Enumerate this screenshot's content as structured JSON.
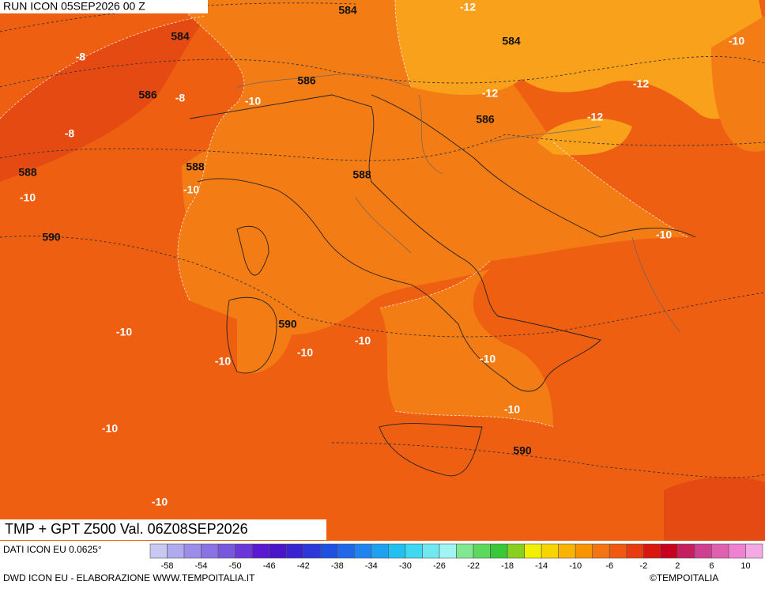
{
  "header": {
    "title": "RUN ICON 05SEP2026 00 Z"
  },
  "map": {
    "labels": [
      584,
      -12,
      584,
      -8,
      584,
      -10,
      586,
      -8,
      -10,
      586,
      -12,
      -12,
      586,
      -12,
      -8,
      588,
      588,
      588,
      -10,
      -10,
      -10,
      590,
      590,
      -10,
      -10,
      -10,
      -10,
      -10,
      -10,
      -10,
      590,
      -10
    ]
  },
  "footer": {
    "product": "TMP + GPT Z500 Val. 06Z08SEP2026",
    "source": "DATI ICON EU 0.0625°",
    "credits": "DWD ICON EU - ELABORAZIONE WWW.TEMPOITALIA.IT",
    "copyright": "©TEMPOITALIA"
  },
  "colorbar": {
    "labels": [
      -58,
      -54,
      -50,
      -46,
      -42,
      -38,
      -34,
      -30,
      -26,
      -22,
      -18,
      -14,
      -10,
      -6,
      -2,
      2,
      6,
      10
    ],
    "colors": [
      "#c8c8f2",
      "#b0aaee",
      "#9c8ee8",
      "#8a72e4",
      "#7856de",
      "#6a38d8",
      "#5a18d0",
      "#4a14c8",
      "#3a24d0",
      "#2c38d8",
      "#2050e0",
      "#2068e8",
      "#2084f0",
      "#20a0f0",
      "#20c0f0",
      "#40d8f0",
      "#70e8f0",
      "#a0f4f4",
      "#80e890",
      "#5cd85c",
      "#38c838",
      "#88d020",
      "#f0f000",
      "#f8d400",
      "#f8b400",
      "#f89400",
      "#f47414",
      "#f05a10",
      "#e83c10",
      "#d81810",
      "#c80020",
      "#c42060",
      "#d04090",
      "#e060b0",
      "#f080d0",
      "#f4a8e4"
    ]
  }
}
